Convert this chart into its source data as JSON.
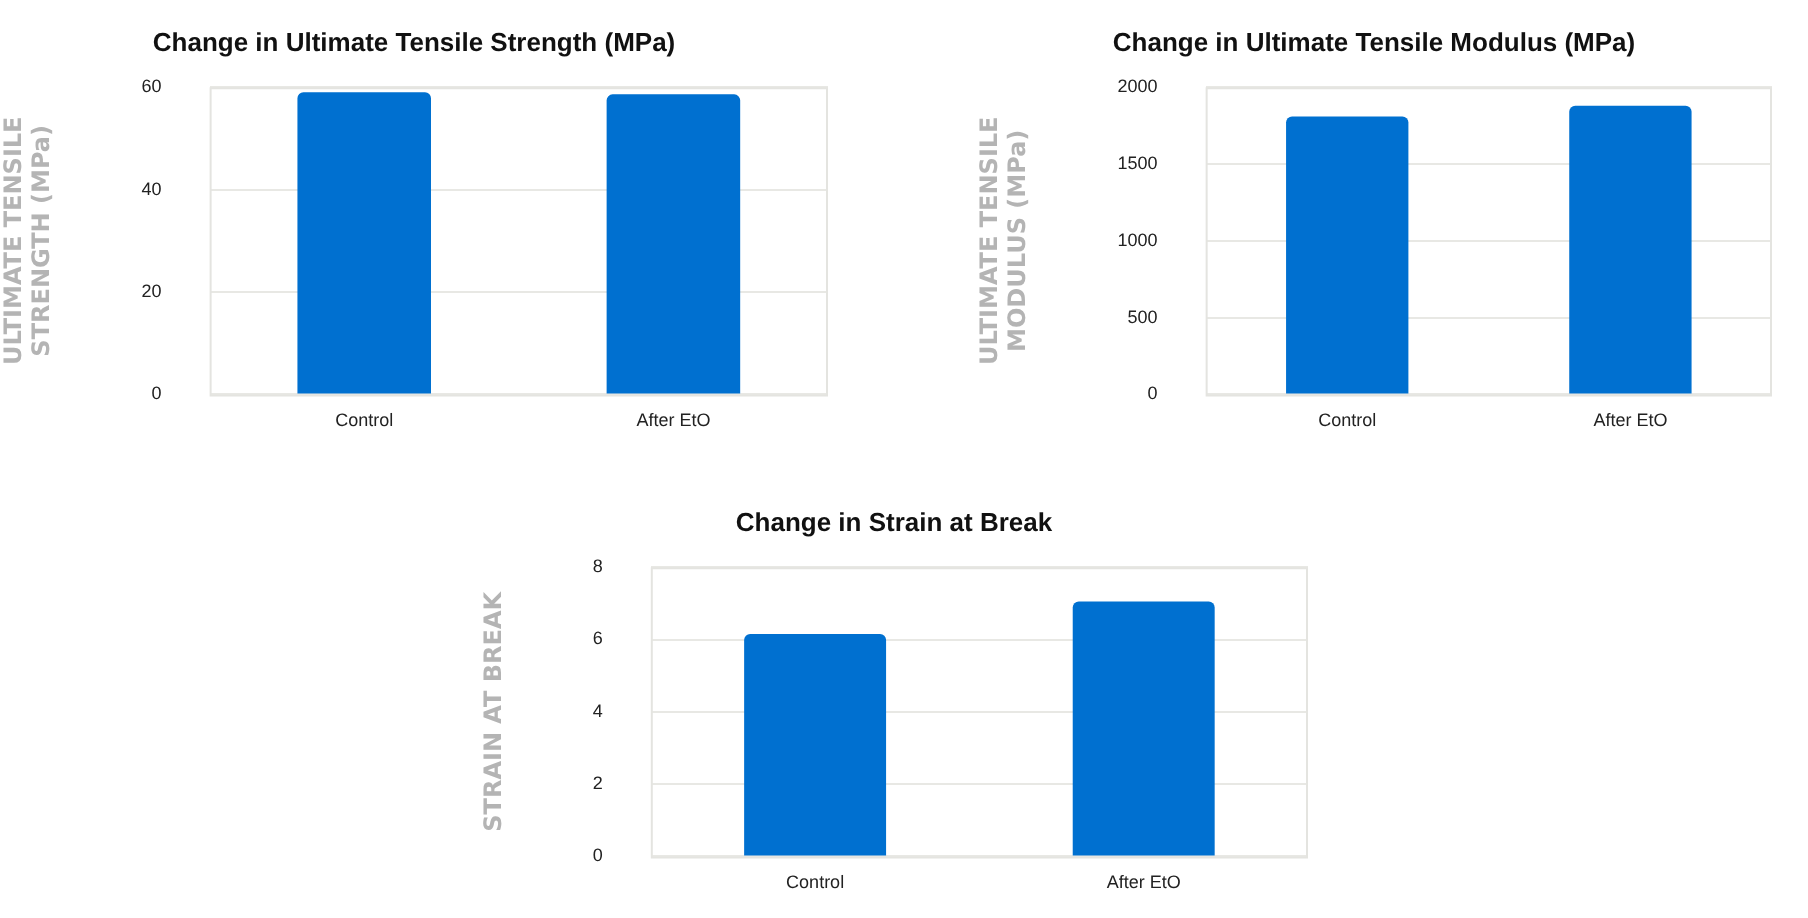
{
  "chart_data": [
    {
      "type": "bar",
      "title": "Change in Ultimate Tensile Strength (MPa)",
      "ylabel": "ULTIMATE TENSILE STRENGTH (MPa)",
      "categories": [
        "Control",
        "After EtO"
      ],
      "values": [
        59.0,
        58.6
      ],
      "color": "#0070d0",
      "ylim": [
        0,
        60
      ],
      "yticks": [
        0,
        20,
        40,
        60
      ],
      "grid": "y"
    },
    {
      "type": "bar",
      "title": "Change in Ultimate Tensile Modulus (MPa)",
      "ylabel": "ULTIMATE TENSILE MODULUS (MPa)",
      "categories": [
        "Control",
        "After EtO"
      ],
      "values": [
        1810,
        1880
      ],
      "color": "#0070d0",
      "ylim": [
        0,
        2000
      ],
      "yticks": [
        0,
        500,
        1000,
        1500,
        2000
      ],
      "grid": "y"
    },
    {
      "type": "bar",
      "title": "Change in Strain at Break",
      "ylabel": "STRAIN AT BREAK",
      "categories": [
        "Control",
        "After EtO"
      ],
      "values": [
        6.15,
        7.05
      ],
      "color": "#0070d0",
      "ylim": [
        0,
        8
      ],
      "yticks": [
        0,
        2,
        4,
        6,
        8
      ],
      "grid": "y"
    }
  ]
}
